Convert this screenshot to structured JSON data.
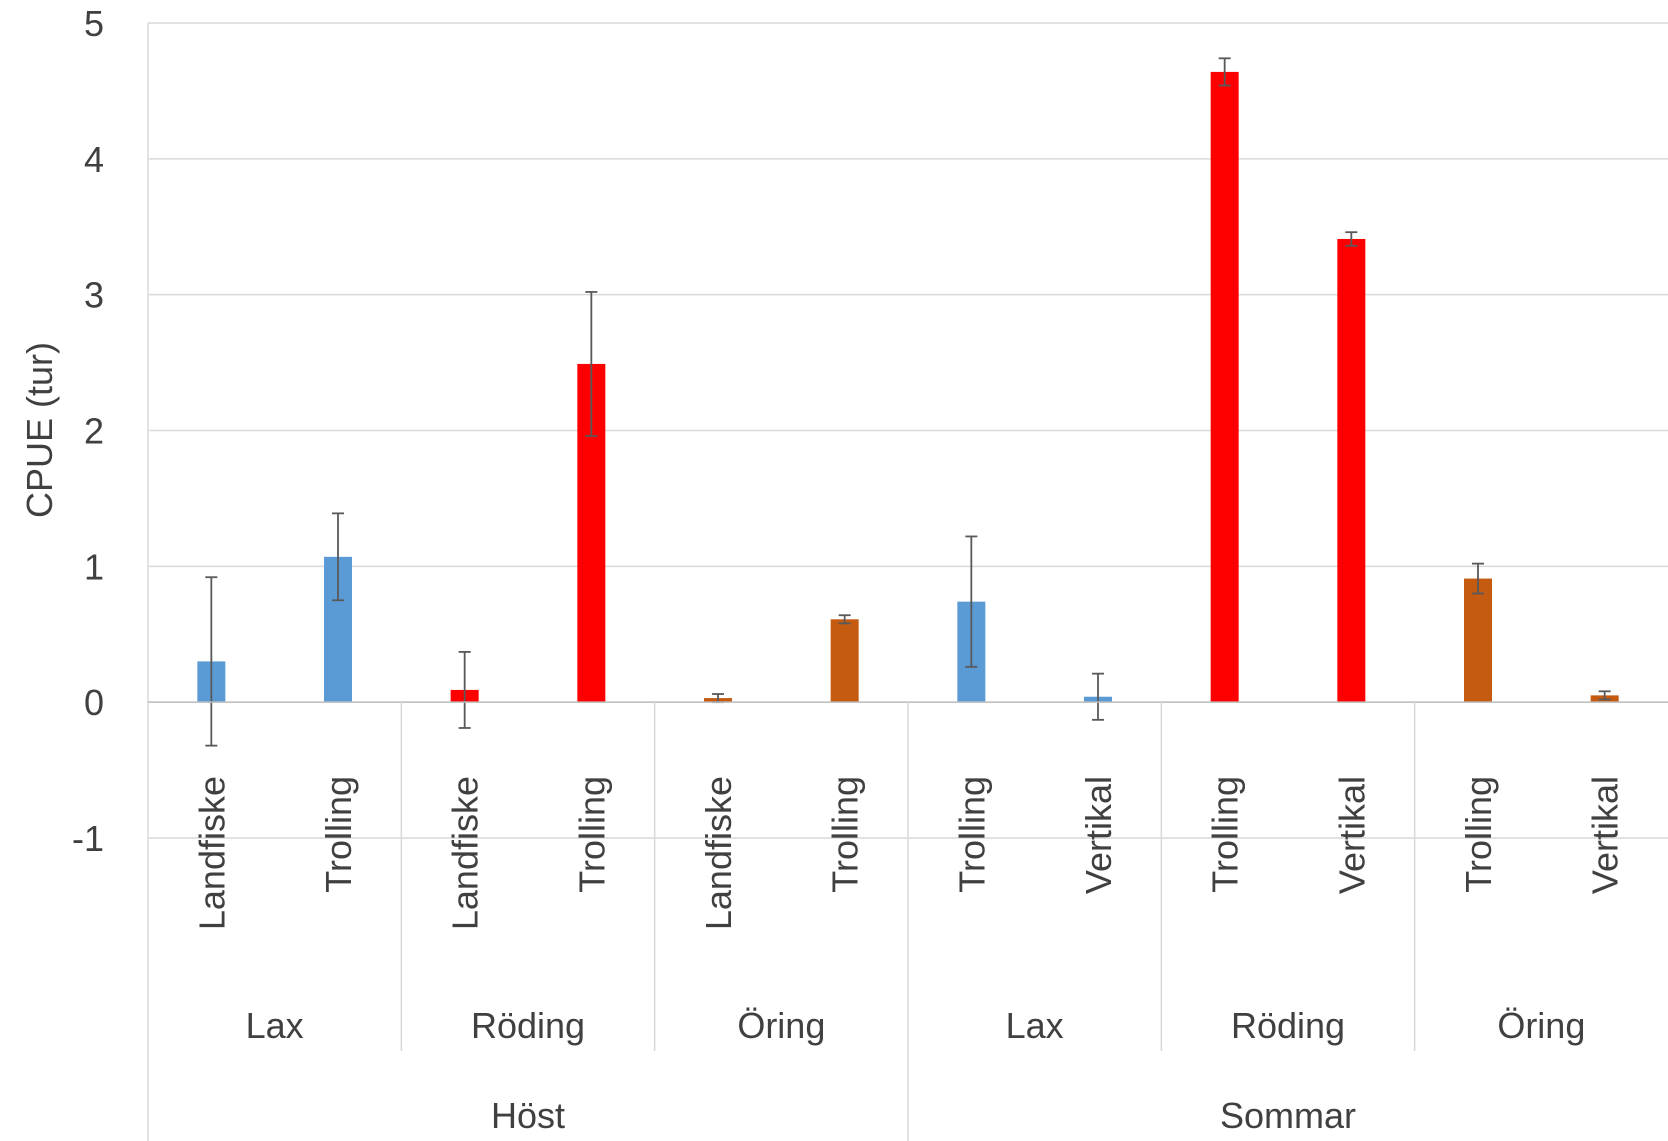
{
  "chart_data": {
    "type": "bar",
    "title": "",
    "ylabel": "CPUE (tur)",
    "xlabel": "",
    "ylim": [
      -1,
      5
    ],
    "yticks": [
      -1,
      0,
      1,
      2,
      3,
      4,
      5
    ],
    "grid": true,
    "legend": "none",
    "colors": {
      "Lax": "#5b9bd5",
      "Röding": "#ff0000",
      "Öring": "#c55a11"
    },
    "groups": [
      {
        "season": "Höst",
        "species": [
          {
            "name": "Lax",
            "bars": [
              {
                "method": "Landfiske",
                "value": 0.3,
                "error": 0.62
              },
              {
                "method": "Trolling",
                "value": 1.07,
                "error": 0.32
              }
            ]
          },
          {
            "name": "Röding",
            "bars": [
              {
                "method": "Landfiske",
                "value": 0.09,
                "error": 0.28
              },
              {
                "method": "Trolling",
                "value": 2.49,
                "error": 0.53
              }
            ]
          },
          {
            "name": "Öring",
            "bars": [
              {
                "method": "Landfiske",
                "value": 0.03,
                "error": 0.03
              },
              {
                "method": "Trolling",
                "value": 0.61,
                "error": 0.03
              }
            ]
          }
        ]
      },
      {
        "season": "Sommar",
        "species": [
          {
            "name": "Lax",
            "bars": [
              {
                "method": "Trolling",
                "value": 0.74,
                "error": 0.48
              },
              {
                "method": "Vertikal",
                "value": 0.04,
                "error": 0.17
              }
            ]
          },
          {
            "name": "Röding",
            "bars": [
              {
                "method": "Trolling",
                "value": 4.64,
                "error": 0.1
              },
              {
                "method": "Vertikal",
                "value": 3.41,
                "error": 0.05
              }
            ]
          },
          {
            "name": "Öring",
            "bars": [
              {
                "method": "Trolling",
                "value": 0.91,
                "error": 0.11
              },
              {
                "method": "Vertikal",
                "value": 0.05,
                "error": 0.03
              }
            ]
          }
        ]
      }
    ]
  }
}
